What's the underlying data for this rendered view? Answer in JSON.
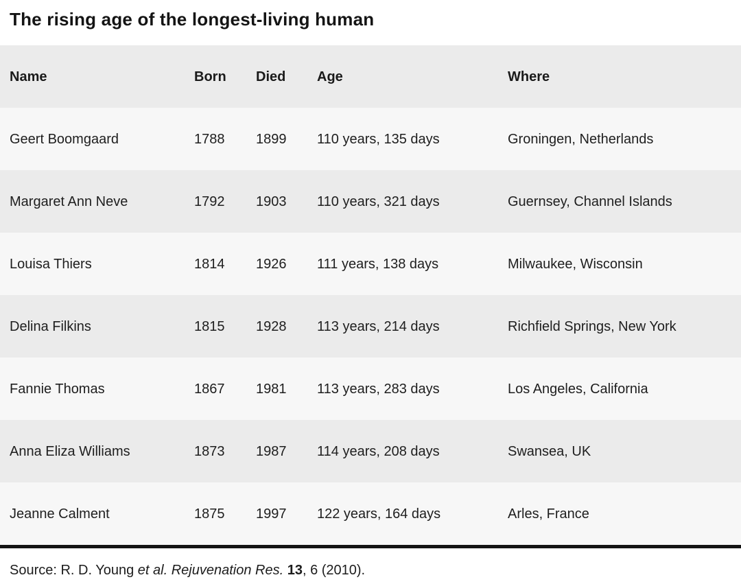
{
  "title": "The rising age of the longest-living human",
  "chart_data": {
    "type": "table",
    "title": "The rising age of the longest-living human",
    "columns": [
      "Name",
      "Born",
      "Died",
      "Age",
      "Where"
    ],
    "rows": [
      [
        "Geert Boomgaard",
        "1788",
        "1899",
        "110 years, 135 days",
        "Groningen, Netherlands"
      ],
      [
        "Margaret Ann Neve",
        "1792",
        "1903",
        "110 years, 321 days",
        "Guernsey, Channel Islands"
      ],
      [
        "Louisa Thiers",
        "1814",
        "1926",
        "111 years, 138 days",
        "Milwaukee, Wisconsin"
      ],
      [
        "Delina Filkins",
        "1815",
        "1928",
        "113 years, 214 days",
        "Richfield Springs, New York"
      ],
      [
        "Fannie Thomas",
        "1867",
        "1981",
        "113 years, 283 days",
        "Los Angeles, California"
      ],
      [
        "Anna Eliza Williams",
        "1873",
        "1987",
        "114 years, 208 days",
        "Swansea, UK"
      ],
      [
        "Jeanne Calment",
        "1875",
        "1997",
        "122 years, 164 days",
        "Arles, France"
      ]
    ],
    "source": "Source: R. D. Young et al. Rejuvenation Res. 13, 6 (2010)."
  },
  "source_line": {
    "segments": [
      {
        "text": "Source: R. D. Young ",
        "style": "normal"
      },
      {
        "text": "et al. Rejuvenation Res. ",
        "style": "italic"
      },
      {
        "text": "13",
        "style": "bold"
      },
      {
        "text": ", 6 (2010).",
        "style": "normal"
      }
    ]
  },
  "colors": {
    "header_row_bg": "#EBEBEB",
    "stripe_row_bg": "#F7F7F7",
    "alt_row_bg": "#EBEBEB",
    "bottom_rule": "#141414",
    "text": "#1E1E1E"
  }
}
